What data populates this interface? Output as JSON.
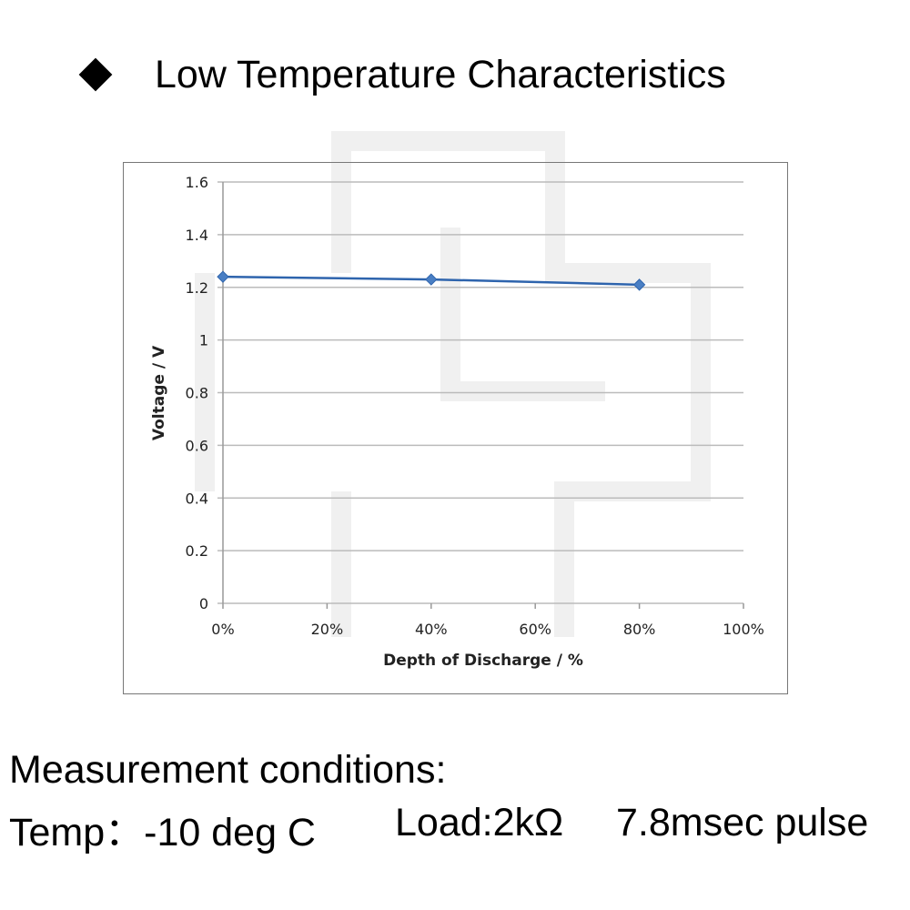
{
  "title": "Low Temperature Characteristics",
  "watermark": "RUSPART.RU",
  "chart_data": {
    "type": "line",
    "title": "",
    "xlabel": "Depth of Discharge / %",
    "ylabel": "Voltage  /  V",
    "x": [
      0,
      40,
      80
    ],
    "series": [
      {
        "name": "Voltage",
        "values": [
          1.24,
          1.23,
          1.21
        ],
        "color": "#2e64ad"
      }
    ],
    "xlim": [
      0,
      100
    ],
    "ylim": [
      0,
      1.6
    ],
    "xticks": [
      "0%",
      "20%",
      "40%",
      "60%",
      "80%",
      "100%"
    ],
    "yticks": [
      "0",
      "0.2",
      "0.4",
      "0.6",
      "0.8",
      "1",
      "1.2",
      "1.4",
      "1.6"
    ],
    "grid": true,
    "legend": "none"
  },
  "conditions": {
    "heading": "Measurement conditions:",
    "temp": "Temp：-10 deg C",
    "load": "Load:2kΩ",
    "pulse": "7.8msec pulse"
  }
}
